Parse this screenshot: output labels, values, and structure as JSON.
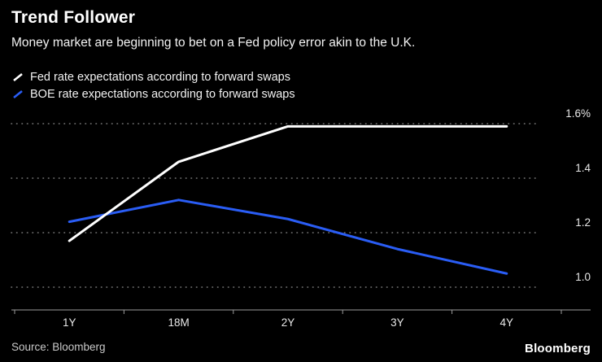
{
  "title": "Trend Follower",
  "subtitle": "Money market are beginning to bet on a Fed policy error akin to the U.K.",
  "legend": [
    {
      "label": "Fed rate expectations according to forward swaps",
      "color": "#ffffff"
    },
    {
      "label": "BOE rate expectations according to forward swaps",
      "color": "#2a5df5"
    }
  ],
  "source": "Source: Bloomberg",
  "brand": "Bloomberg",
  "chart_data": {
    "type": "line",
    "categories": [
      "1Y",
      "18M",
      "2Y",
      "3Y",
      "4Y"
    ],
    "series": [
      {
        "name": "Fed rate expectations according to forward swaps",
        "color": "#ffffff",
        "values": [
          1.17,
          1.46,
          1.59,
          1.59,
          1.59
        ]
      },
      {
        "name": "BOE rate expectations according to forward swaps",
        "color": "#2a5df5",
        "values": [
          1.24,
          1.32,
          1.25,
          1.14,
          1.05
        ]
      }
    ],
    "yticks": [
      1.0,
      1.2,
      1.4,
      1.6
    ],
    "ytick_labels": [
      "1.0",
      "1.2",
      "1.4",
      "1.6%"
    ],
    "ylim": [
      1.0,
      1.6
    ],
    "grid": "dotted-horizontal",
    "legend_position": "top-left"
  }
}
